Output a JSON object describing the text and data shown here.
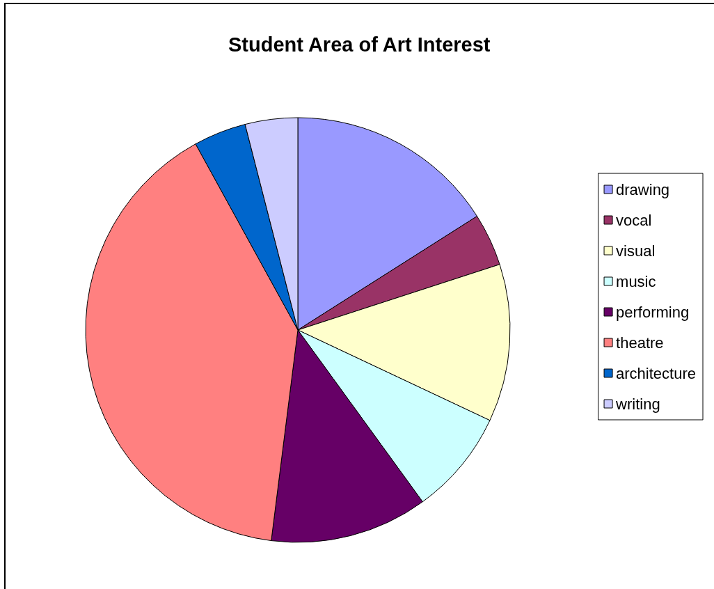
{
  "chart_data": {
    "type": "pie",
    "title": "Student Area of Art Interest",
    "categories": [
      "drawing",
      "vocal",
      "visual",
      "music",
      "performing",
      "theatre",
      "architecture",
      "writing"
    ],
    "values": [
      16,
      4,
      12,
      8,
      12,
      40,
      4,
      4
    ],
    "colors": [
      "#9999ff",
      "#993366",
      "#ffffcc",
      "#ccffff",
      "#660066",
      "#ff8080",
      "#0066cc",
      "#ccccff"
    ],
    "legend": "right"
  }
}
